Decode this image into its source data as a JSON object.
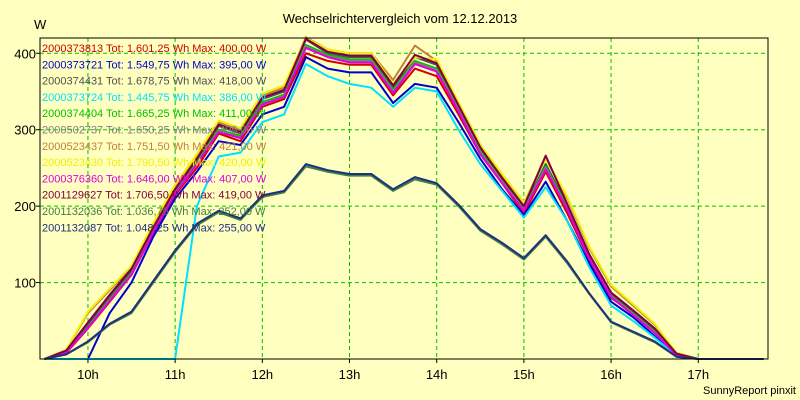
{
  "chart_data": {
    "type": "line",
    "title": "Wechselrichtervergleich vom 12.12.2013",
    "ylabel": "W",
    "footer": "SunnyReport pinxit",
    "ylim": [
      0,
      420
    ],
    "xlim": [
      9.45,
      17.8
    ],
    "yticks": [
      {
        "value": 100,
        "label": "100"
      },
      {
        "value": 200,
        "label": "200"
      },
      {
        "value": 300,
        "label": "300"
      },
      {
        "value": 400,
        "label": "400"
      }
    ],
    "xticks": [
      {
        "value": 10,
        "label": "10h"
      },
      {
        "value": 11,
        "label": "11h"
      },
      {
        "value": 12,
        "label": "12h"
      },
      {
        "value": 13,
        "label": "13h"
      },
      {
        "value": 14,
        "label": "14h"
      },
      {
        "value": 15,
        "label": "15h"
      },
      {
        "value": 16,
        "label": "16h"
      },
      {
        "value": 17,
        "label": "17h"
      }
    ],
    "grid": true,
    "legend_position": "top-left",
    "x": [
      9.5,
      9.75,
      10.0,
      10.25,
      10.5,
      10.75,
      11.0,
      11.25,
      11.5,
      11.75,
      12.0,
      12.25,
      12.5,
      12.75,
      13.0,
      13.25,
      13.5,
      13.75,
      14.0,
      14.25,
      14.5,
      14.75,
      15.0,
      15.25,
      15.5,
      15.75,
      16.0,
      16.25,
      16.5,
      16.75,
      17.0,
      17.25,
      17.5,
      17.75
    ],
    "series": [
      {
        "name": "2000373813 Tot: 1.601,25 Wh Max: 400,00 W",
        "color": "#d00000",
        "values": [
          0,
          8,
          40,
          75,
          110,
          165,
          215,
          250,
          295,
          285,
          330,
          340,
          400,
          390,
          385,
          385,
          345,
          380,
          370,
          320,
          268,
          230,
          190,
          245,
          190,
          130,
          80,
          60,
          35,
          5,
          0,
          0,
          0,
          0
        ]
      },
      {
        "name": "2000373721 Tot: 1.549,75 Wh Max: 395,00 W",
        "color": "#0000d0",
        "values": [
          0,
          0,
          0,
          60,
          100,
          160,
          210,
          245,
          285,
          280,
          320,
          330,
          395,
          380,
          375,
          375,
          335,
          360,
          355,
          310,
          262,
          222,
          188,
          232,
          180,
          125,
          75,
          55,
          30,
          5,
          0,
          0,
          0,
          0
        ]
      },
      {
        "name": "2000374431 Tot: 1.678,75 Wh Max: 418,00 W",
        "color": "#505050",
        "values": [
          0,
          10,
          45,
          80,
          115,
          170,
          220,
          260,
          305,
          295,
          340,
          350,
          418,
          400,
          395,
          395,
          355,
          395,
          385,
          330,
          275,
          235,
          198,
          255,
          200,
          135,
          85,
          62,
          38,
          6,
          0,
          0,
          0,
          0
        ]
      },
      {
        "name": "2000373724 Tot: 1.445,75 Wh Max: 386,00 W",
        "color": "#00e0ff",
        "values": [
          0,
          0,
          0,
          0,
          0,
          0,
          0,
          200,
          265,
          270,
          310,
          320,
          386,
          370,
          360,
          355,
          330,
          355,
          350,
          300,
          255,
          220,
          185,
          225,
          180,
          120,
          70,
          50,
          28,
          4,
          0,
          0,
          0,
          0
        ]
      },
      {
        "name": "2000374404 Tot: 1.665,25 Wh Max: 411,00 W",
        "color": "#00c000",
        "values": [
          0,
          10,
          42,
          78,
          112,
          168,
          218,
          258,
          300,
          292,
          336,
          346,
          411,
          398,
          392,
          392,
          352,
          390,
          380,
          328,
          272,
          233,
          196,
          252,
          198,
          133,
          83,
          60,
          36,
          6,
          0,
          0,
          0,
          0
        ]
      },
      {
        "name": "2000502737 Tot: 1.650,25 Wh Max: 409,00 W",
        "color": "#808080",
        "values": [
          0,
          9,
          41,
          77,
          111,
          167,
          217,
          256,
          298,
          290,
          334,
          344,
          409,
          396,
          390,
          390,
          350,
          388,
          378,
          326,
          270,
          232,
          195,
          250,
          196,
          132,
          82,
          59,
          35,
          6,
          0,
          0,
          0,
          0
        ]
      },
      {
        "name": "2000523437 Tot: 1.751,50 Wh Max: 421,00 W",
        "color": "#c08040",
        "values": [
          0,
          12,
          60,
          90,
          120,
          175,
          225,
          265,
          310,
          300,
          345,
          355,
          421,
          405,
          400,
          400,
          365,
          410,
          390,
          335,
          280,
          240,
          205,
          262,
          210,
          145,
          95,
          70,
          45,
          8,
          0,
          0,
          0,
          0
        ]
      },
      {
        "name": "2000523430 Tot: 1.790,50 Wh Max: 420,00 W",
        "color": "#f0f000",
        "values": [
          0,
          12,
          62,
          92,
          122,
          178,
          228,
          268,
          312,
          302,
          347,
          358,
          420,
          405,
          400,
          400,
          360,
          395,
          392,
          336,
          280,
          242,
          205,
          262,
          212,
          147,
          97,
          72,
          46,
          8,
          0,
          0,
          0,
          0
        ]
      },
      {
        "name": "2000376360 Tot: 1.646,00 Wh Max: 407,00 W",
        "color": "#e000e0",
        "values": [
          0,
          9,
          41,
          76,
          110,
          166,
          216,
          255,
          297,
          289,
          333,
          343,
          407,
          395,
          388,
          388,
          348,
          386,
          376,
          324,
          268,
          230,
          194,
          248,
          195,
          131,
          81,
          58,
          34,
          5,
          0,
          0,
          0,
          0
        ]
      },
      {
        "name": "2001129627 Tot: 1.706,50 Wh Max: 419,00 W",
        "color": "#800040",
        "values": [
          0,
          11,
          48,
          84,
          118,
          172,
          222,
          262,
          307,
          297,
          342,
          352,
          419,
          402,
          397,
          397,
          358,
          398,
          387,
          332,
          277,
          237,
          200,
          266,
          202,
          137,
          87,
          64,
          40,
          7,
          0,
          0,
          0,
          0
        ]
      },
      {
        "name": "2001132036 Tot: 1.036,75 Wh Max: 252,00 W",
        "color": "#408040",
        "values": [
          0,
          6,
          22,
          45,
          60,
          100,
          140,
          175,
          192,
          182,
          212,
          218,
          252,
          245,
          240,
          240,
          220,
          235,
          228,
          200,
          168,
          150,
          130,
          160,
          125,
          85,
          48,
          35,
          22,
          3,
          0,
          0,
          0,
          0
        ]
      },
      {
        "name": "2001132087 Tot: 1.048,25 Wh Max: 255,00 W",
        "color": "#203080",
        "values": [
          0,
          6,
          23,
          46,
          62,
          102,
          142,
          177,
          194,
          184,
          214,
          220,
          255,
          247,
          242,
          242,
          222,
          238,
          230,
          202,
          170,
          152,
          132,
          162,
          127,
          86,
          49,
          36,
          23,
          3,
          0,
          0,
          0,
          0
        ]
      }
    ]
  }
}
